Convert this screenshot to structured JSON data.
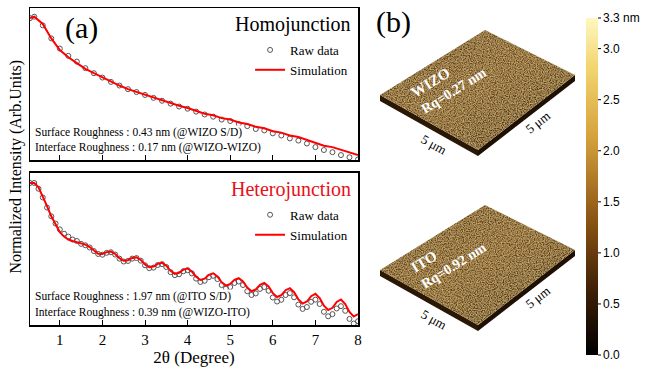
{
  "panel_a": {
    "label": "(a)",
    "x_label": "2θ (Degree)",
    "y_label": "Normalized Intensity (Arb.Units)"
  },
  "chart_data": [
    {
      "type": "scatter",
      "title": "Homojunction",
      "annotations": [
        "Surface Roughness : 0.43 nm (@WIZO S/D)",
        "Interface Roughness : 0.17 nm (@WIZO-WIZO)"
      ],
      "xlim": [
        0.3,
        8
      ],
      "xticks": [
        1,
        2,
        3,
        4,
        5,
        6,
        7,
        8
      ],
      "ylim": [
        0,
        10.5
      ],
      "tick_labels": false,
      "grid": false,
      "legend": "upper right",
      "series": [
        {
          "name": "Raw data",
          "type": "scatter",
          "marker": "circle-open",
          "color": "#555555",
          "x": [
            0.3,
            0.4,
            0.6,
            0.8,
            1.0,
            1.2,
            1.4,
            1.6,
            1.8,
            2.0,
            2.2,
            2.4,
            2.6,
            2.8,
            3.0,
            3.2,
            3.4,
            3.6,
            3.8,
            4.0,
            4.2,
            4.4,
            4.6,
            4.8,
            5.0,
            5.2,
            5.4,
            5.6,
            5.8,
            6.0,
            6.2,
            6.4,
            6.6,
            6.8,
            7.0,
            7.2,
            7.4,
            7.6,
            7.8,
            8.0
          ],
          "values": [
            9.8,
            9.9,
            9.3,
            8.4,
            7.7,
            7.2,
            6.8,
            6.35,
            6.0,
            5.7,
            5.4,
            5.15,
            4.9,
            4.7,
            4.5,
            4.3,
            4.1,
            3.9,
            3.7,
            3.55,
            3.35,
            3.15,
            3.0,
            2.8,
            2.7,
            2.5,
            2.35,
            2.15,
            2.05,
            1.85,
            1.7,
            1.5,
            1.35,
            1.15,
            0.9,
            0.7,
            0.55,
            0.35,
            0.2,
            0.05
          ]
        },
        {
          "name": "Simulation",
          "type": "line",
          "line_style": "solid",
          "color": "#ff0000",
          "x": [
            0.3,
            0.4,
            0.6,
            0.8,
            1.0,
            1.2,
            1.4,
            1.6,
            1.8,
            2.0,
            2.2,
            2.4,
            2.6,
            2.8,
            3.0,
            3.2,
            3.4,
            3.6,
            3.8,
            4.0,
            4.2,
            4.4,
            4.6,
            4.8,
            5.0,
            5.2,
            5.4,
            5.6,
            5.8,
            6.0,
            6.2,
            6.4,
            6.6,
            6.8,
            7.0,
            7.2,
            7.4,
            7.6,
            7.8,
            8.0
          ],
          "values": [
            9.8,
            9.9,
            9.4,
            8.4,
            7.6,
            7.1,
            6.7,
            6.3,
            6.0,
            5.7,
            5.4,
            5.15,
            4.9,
            4.7,
            4.5,
            4.3,
            4.1,
            3.95,
            3.75,
            3.6,
            3.4,
            3.2,
            3.1,
            2.9,
            2.8,
            2.6,
            2.5,
            2.3,
            2.2,
            2.0,
            1.9,
            1.7,
            1.6,
            1.4,
            1.2,
            1.0,
            0.9,
            0.7,
            0.55,
            0.35
          ]
        }
      ]
    },
    {
      "type": "scatter",
      "title": "Heterojunction",
      "annotations": [
        "Surface Roughness : 1.97 nm (@ITO S/D)",
        "Interface Roughness : 0.39 nm (@WIZO-ITO)"
      ],
      "xlim": [
        0.3,
        8
      ],
      "xticks": [
        1,
        2,
        3,
        4,
        5,
        6,
        7,
        8
      ],
      "ylim": [
        0,
        10.5
      ],
      "tick_labels": "x",
      "grid": false,
      "legend": "upper right",
      "series": [
        {
          "name": "Raw data",
          "type": "scatter",
          "marker": "circle-open",
          "color": "#555555",
          "x": [
            0.3,
            0.4,
            0.5,
            0.6,
            0.7,
            0.8,
            0.9,
            1.0,
            1.1,
            1.2,
            1.3,
            1.4,
            1.5,
            1.6,
            1.7,
            1.8,
            1.9,
            2.0,
            2.1,
            2.2,
            2.3,
            2.4,
            2.5,
            2.6,
            2.7,
            2.8,
            2.9,
            3.0,
            3.1,
            3.2,
            3.3,
            3.4,
            3.5,
            3.6,
            3.7,
            3.8,
            3.9,
            4.0,
            4.1,
            4.2,
            4.3,
            4.4,
            4.5,
            4.6,
            4.7,
            4.8,
            4.9,
            5.0,
            5.1,
            5.2,
            5.3,
            5.4,
            5.5,
            5.6,
            5.7,
            5.8,
            5.9,
            6.0,
            6.1,
            6.2,
            6.3,
            6.4,
            6.5,
            6.6,
            6.7,
            6.8,
            6.9,
            7.0,
            7.1,
            7.2,
            7.3,
            7.4,
            7.5,
            7.6,
            7.7,
            7.8,
            7.9,
            8.0
          ],
          "values": [
            9.8,
            9.8,
            9.4,
            8.8,
            8.1,
            7.5,
            7.0,
            6.6,
            6.3,
            6.1,
            5.9,
            5.8,
            5.6,
            5.5,
            5.35,
            5.1,
            4.9,
            4.85,
            4.98,
            5.02,
            4.86,
            4.58,
            4.38,
            4.42,
            4.58,
            4.62,
            4.44,
            4.12,
            3.92,
            3.96,
            4.14,
            4.2,
            4.0,
            3.65,
            3.44,
            3.5,
            3.71,
            3.78,
            3.56,
            3.2,
            2.97,
            3.05,
            3.3,
            3.4,
            3.17,
            2.76,
            2.52,
            2.62,
            2.9,
            3.0,
            2.76,
            2.33,
            2.07,
            2.18,
            2.49,
            2.62,
            2.36,
            1.9,
            1.62,
            1.74,
            2.07,
            2.2,
            1.91,
            1.41,
            1.11,
            1.24,
            1.6,
            1.75,
            1.45,
            0.91,
            0.6,
            0.75,
            1.14,
            1.3,
            0.98,
            0.42,
            0.1,
            0.26
          ]
        },
        {
          "name": "Simulation",
          "type": "line",
          "line_style": "solid",
          "color": "#ff0000",
          "x": [
            0.3,
            0.4,
            0.5,
            0.6,
            0.7,
            0.8,
            0.9,
            1.0,
            1.1,
            1.2,
            1.3,
            1.4,
            1.5,
            1.6,
            1.7,
            1.8,
            1.9,
            2.0,
            2.1,
            2.2,
            2.3,
            2.4,
            2.5,
            2.6,
            2.7,
            2.8,
            2.9,
            3.0,
            3.1,
            3.2,
            3.3,
            3.4,
            3.5,
            3.6,
            3.7,
            3.8,
            3.9,
            4.0,
            4.1,
            4.2,
            4.3,
            4.4,
            4.5,
            4.6,
            4.7,
            4.8,
            4.9,
            5.0,
            5.1,
            5.2,
            5.3,
            5.4,
            5.5,
            5.6,
            5.7,
            5.8,
            5.9,
            6.0,
            6.1,
            6.2,
            6.3,
            6.4,
            6.5,
            6.6,
            6.7,
            6.8,
            6.9,
            7.0,
            7.1,
            7.2,
            7.3,
            7.4,
            7.5,
            7.6,
            7.7,
            7.8,
            7.9,
            8.0
          ],
          "values": [
            9.8,
            9.8,
            9.5,
            8.9,
            8.2,
            7.5,
            6.9,
            6.4,
            6.1,
            5.9,
            5.8,
            5.7,
            5.6,
            5.55,
            5.38,
            5.12,
            4.92,
            4.9,
            5.03,
            5.07,
            4.9,
            4.61,
            4.43,
            4.47,
            4.63,
            4.68,
            4.49,
            4.18,
            3.98,
            4.03,
            4.22,
            4.29,
            4.09,
            3.74,
            3.53,
            3.6,
            3.82,
            3.9,
            3.69,
            3.33,
            3.11,
            3.2,
            3.46,
            3.57,
            3.35,
            2.95,
            2.72,
            2.83,
            3.12,
            3.24,
            3.0,
            2.58,
            2.33,
            2.45,
            2.77,
            2.91,
            2.66,
            2.2,
            1.93,
            2.06,
            2.4,
            2.54,
            2.26,
            1.77,
            1.48,
            1.62,
            1.99,
            2.15,
            1.86,
            1.33,
            1.03,
            1.19,
            1.59,
            1.76,
            1.45,
            0.9,
            0.58,
            0.75
          ]
        }
      ]
    }
  ],
  "panel_b": {
    "label": "(b)",
    "images": [
      {
        "material": "WIZO",
        "roughness": "Rq=0.27 nm",
        "x_size": "5 μm",
        "y_size": "5 μm"
      },
      {
        "material": "ITO",
        "roughness": "Rq=0.92 nm",
        "x_size": "5 μm",
        "y_size": "5 μm"
      }
    ],
    "colorbar": {
      "range": [
        0,
        3.3
      ],
      "ticks": [
        {
          "value": 0,
          "label": "0.0"
        },
        0.5,
        {
          "value": 1,
          "label": "1.0"
        },
        1.5,
        {
          "value": 2,
          "label": "2.0"
        },
        2.5,
        {
          "value": 3,
          "label": "3.0"
        },
        {
          "value": 3.3,
          "label": "3.3 nm"
        }
      ]
    }
  }
}
